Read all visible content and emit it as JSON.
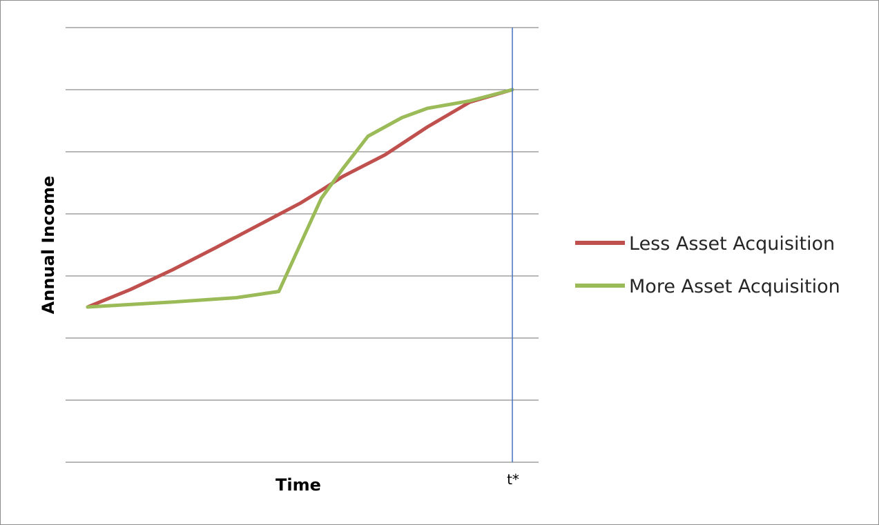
{
  "chart_data": {
    "type": "line",
    "title": "",
    "xlabel": "Time",
    "ylabel": "Annual Income",
    "xlim": [
      0,
      100
    ],
    "ylim": [
      0,
      7
    ],
    "grid": "horizontal",
    "gridlines_y": [
      0,
      1,
      2,
      3,
      4,
      5,
      6,
      7
    ],
    "vertical_marker": {
      "x": 100,
      "label": "t*",
      "color": "#4472c4"
    },
    "legend_position": "right",
    "series": [
      {
        "name": "Less Asset Acquisition",
        "color": "#c0504d",
        "x": [
          0,
          10,
          20,
          30,
          40,
          50,
          55,
          60,
          70,
          80,
          90,
          100
        ],
        "y": [
          2.5,
          2.78,
          3.1,
          3.45,
          3.81,
          4.17,
          4.38,
          4.6,
          4.95,
          5.4,
          5.8,
          6.0
        ]
      },
      {
        "name": "More Asset Acquisition",
        "color": "#9bbb59",
        "x": [
          0,
          20,
          35,
          45,
          50,
          55,
          60,
          66,
          74,
          80,
          90,
          100
        ],
        "y": [
          2.5,
          2.58,
          2.65,
          2.75,
          3.5,
          4.25,
          4.72,
          5.25,
          5.55,
          5.7,
          5.82,
          6.0
        ]
      }
    ]
  }
}
